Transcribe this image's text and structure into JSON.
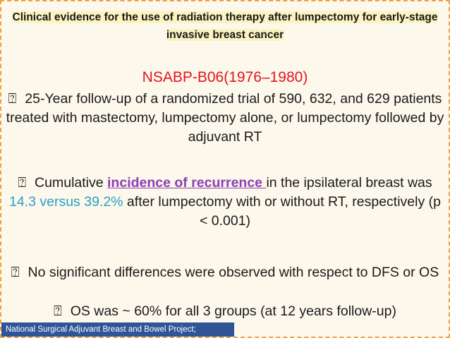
{
  "title": "Clinical evidence for the use of radiation therapy after lumpectomy for early-stage invasive breast cancer",
  "trial": "NSABP-B06(1976–1980)",
  "points": [
    {
      "bullet": "⍰",
      "segments": [
        "25-Year follow-up of a randomized trial of 590, 632, and 629 patients treated with mastectomy, lumpectomy alone, or lumpectomy followed by adjuvant RT"
      ]
    },
    {
      "bullet": "⍰",
      "segments": [
        "Cumulative ",
        "incidence of recurrence ",
        "in the ipsilateral breast was ",
        "14.3 versus 39.2%",
        " after lumpectomy with or without RT, respectively (p < 0.001)"
      ]
    },
    {
      "bullet": "⍰",
      "segments": [
        "No significant differences were observed with respect to DFS or OS"
      ]
    },
    {
      "bullet": "⍰",
      "segments": [
        "OS was ~ 60% for all 3 groups (at 12 years follow-up)"
      ]
    }
  ],
  "footer": "National Surgical Adjuvant Breast and Bowel Project;"
}
